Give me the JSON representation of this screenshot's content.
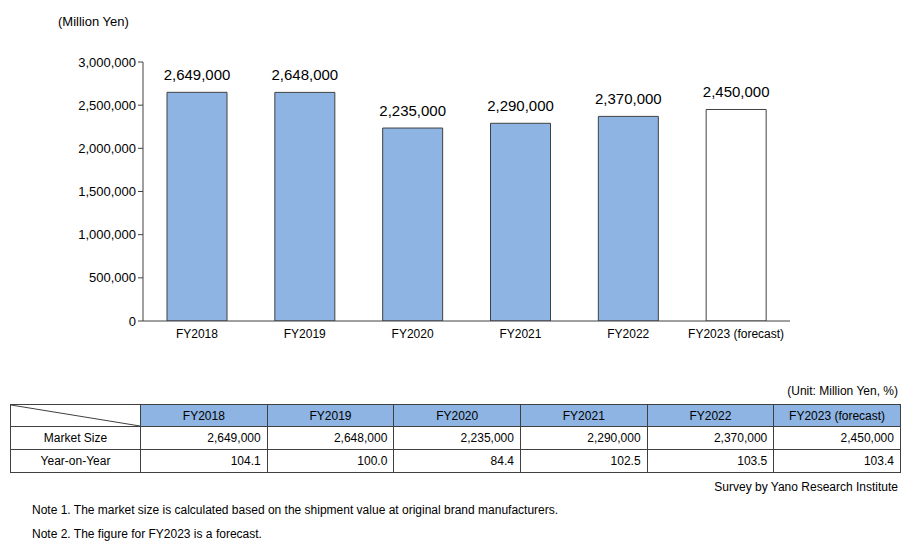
{
  "chart_data": {
    "type": "bar",
    "y_label": "(Million Yen)",
    "categories": [
      "FY2018",
      "FY2019",
      "FY2020",
      "FY2021",
      "FY2022",
      "FY2023 (forecast)"
    ],
    "values": [
      2649000,
      2648000,
      2235000,
      2290000,
      2370000,
      2450000
    ],
    "value_labels": [
      "2,649,000",
      "2,648,000",
      "2,235,000",
      "2,290,000",
      "2,370,000",
      "2,450,000"
    ],
    "data_labels": true,
    "colors": [
      "#8db4e2",
      "#8db4e2",
      "#8db4e2",
      "#8db4e2",
      "#8db4e2",
      "#ffffff"
    ],
    "ylim": [
      0,
      3000000
    ],
    "yticks": [
      0,
      {
        "value": 500000,
        "label": "500,000"
      },
      {
        "value": 1000000,
        "label": "1,000,000"
      },
      {
        "value": 1500000,
        "label": "1,500,000"
      },
      {
        "value": 2000000,
        "label": "2,000,000"
      },
      {
        "value": 2500000,
        "label": "2,500,000"
      },
      {
        "value": 3000000,
        "label": "3,000,000"
      }
    ],
    "grid": false
  },
  "table": {
    "unit": "(Unit: Million Yen, %)",
    "header": [
      "FY2018",
      "FY2019",
      "FY2020",
      "FY2021",
      "FY2022",
      "FY2023 (forecast)"
    ],
    "rows": [
      [
        "Market Size",
        "2,649,000",
        "2,648,000",
        "2,235,000",
        "2,290,000",
        "2,370,000",
        "2,450,000"
      ],
      [
        "Year-on-Year",
        "104.1",
        "100.0",
        "84.4",
        "102.5",
        "103.5",
        "103.4"
      ]
    ]
  },
  "source": "Survey by Yano Research Institute",
  "notes": [
    "Note 1. The market size is calculated based on the shipment value at original brand manufacturers.",
    "Note 2. The figure for FY2023 is a forecast."
  ]
}
